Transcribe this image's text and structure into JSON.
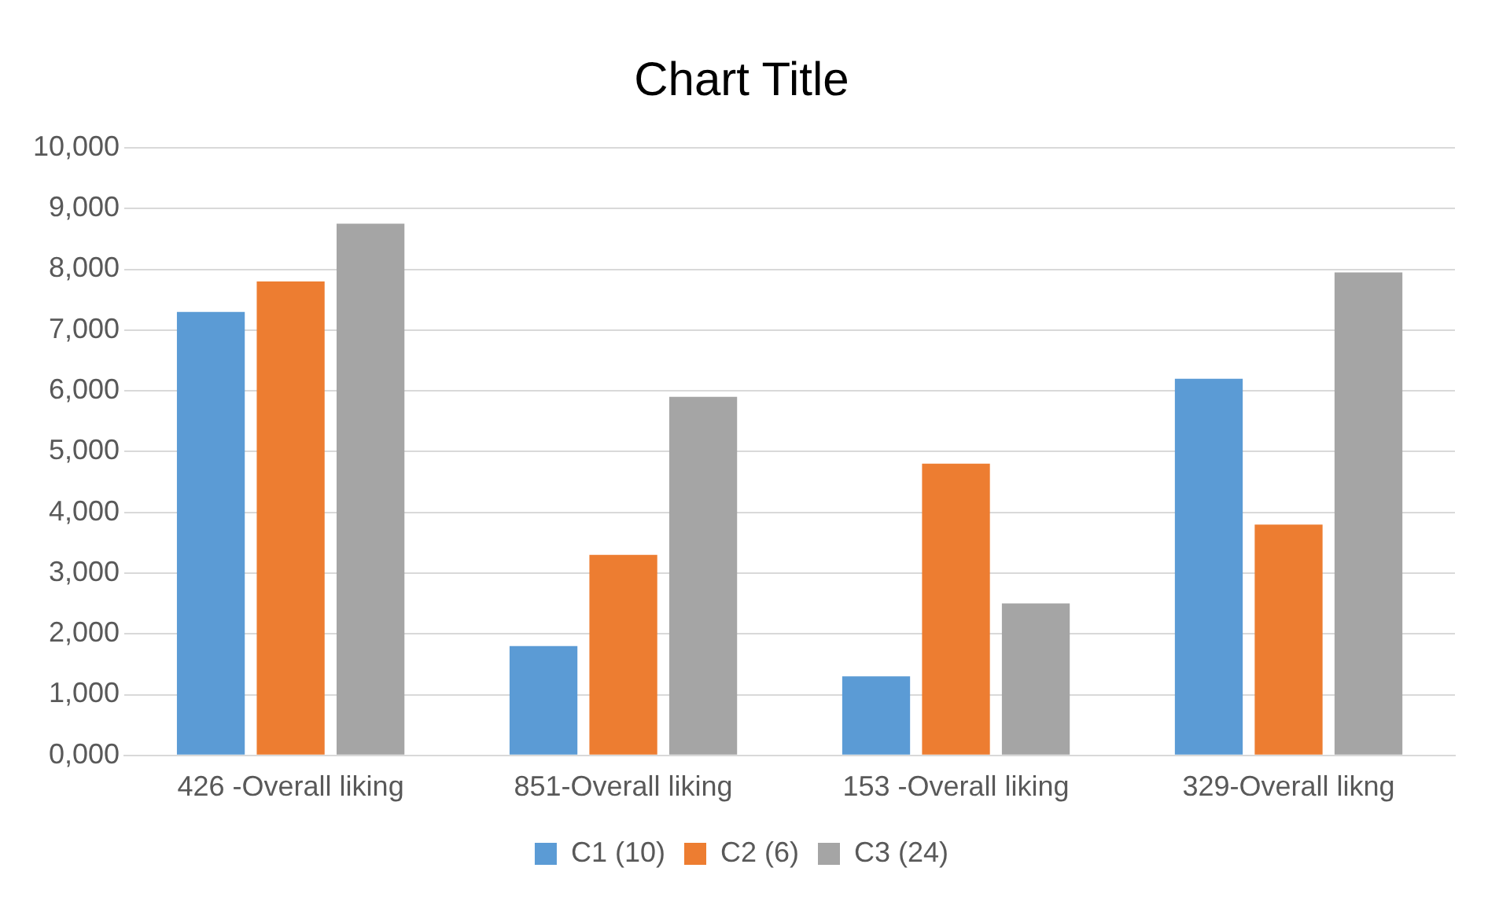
{
  "chart_data": {
    "type": "bar",
    "title": "Chart Title",
    "categories": [
      "426 -Overall liking",
      "851-Overall liking",
      "153 -Overall liking",
      "329-Overall likng"
    ],
    "series": [
      {
        "name": "C1 (10)",
        "color": "#5b9bd5",
        "values": [
          7300,
          1800,
          1300,
          6200
        ]
      },
      {
        "name": "C2 (6)",
        "color": "#ed7d31",
        "values": [
          7800,
          3300,
          4800,
          3800
        ]
      },
      {
        "name": "C3 (24)",
        "color": "#a5a5a5",
        "values": [
          8750,
          5900,
          2500,
          7950
        ]
      }
    ],
    "ylim": [
      0,
      10000
    ],
    "yticks": [
      {
        "value": 0,
        "label": "0,000"
      },
      {
        "value": 1000,
        "label": "1,000"
      },
      {
        "value": 2000,
        "label": "2,000"
      },
      {
        "value": 3000,
        "label": "3,000"
      },
      {
        "value": 4000,
        "label": "4,000"
      },
      {
        "value": 5000,
        "label": "5,000"
      },
      {
        "value": 6000,
        "label": "6,000"
      },
      {
        "value": 7000,
        "label": "7,000"
      },
      {
        "value": 8000,
        "label": "8,000"
      },
      {
        "value": 9000,
        "label": "9,000"
      },
      {
        "value": 10000,
        "label": "10,000"
      }
    ],
    "grid": "y",
    "legend": "bottom"
  }
}
